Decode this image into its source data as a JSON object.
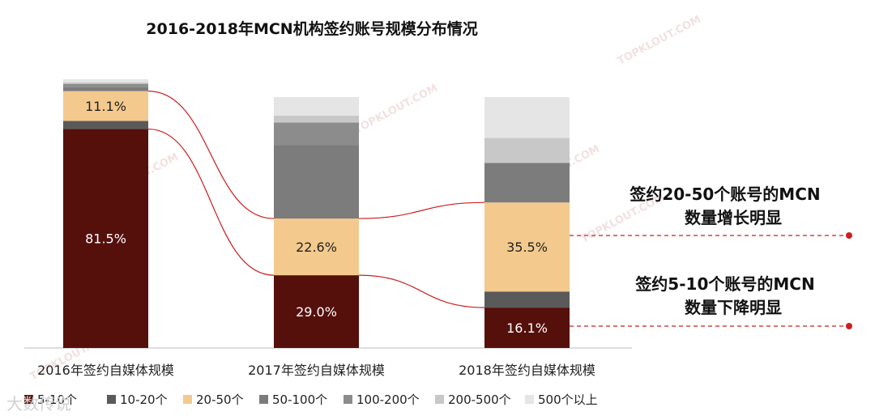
{
  "chart_data": {
    "type": "stacked-bar",
    "title": "2016-2018年MCN机构签约账号规模分布情况",
    "categories": [
      "2016年签约自媒体规模",
      "2017年签约自媒体规模",
      "2018年签约自媒体规模"
    ],
    "ylim": [
      0,
      100
    ],
    "series": [
      {
        "name": "5-10个",
        "color": "#55100c",
        "values": [
          81.5,
          29.0,
          16.1
        ],
        "labels": [
          "81.5%",
          "29.0%",
          "16.1%"
        ]
      },
      {
        "name": "10-20个",
        "color": "#5a5a5a",
        "values": [
          3.0,
          0,
          6.4
        ],
        "labels": [
          "",
          "",
          ""
        ]
      },
      {
        "name": "20-50个",
        "color": "#f3c98d",
        "values": [
          11.1,
          22.6,
          35.5
        ],
        "labels": [
          "11.1%",
          "22.6%",
          "35.5%"
        ]
      },
      {
        "name": "50-100个",
        "color": "#7c7c7c",
        "values": [
          1.5,
          29.2,
          15.8
        ],
        "labels": [
          "",
          "",
          ""
        ]
      },
      {
        "name": "100-200个",
        "color": "#8c8c8c",
        "values": [
          1.2,
          9.1,
          0
        ],
        "labels": [
          "",
          "",
          ""
        ]
      },
      {
        "name": "200-500个",
        "color": "#c8c8c8",
        "values": [
          0.5,
          2.7,
          9.9
        ],
        "labels": [
          "",
          "",
          ""
        ]
      },
      {
        "name": "500个以上",
        "color": "#e5e5e5",
        "values": [
          1.2,
          7.4,
          16.3
        ],
        "labels": [
          "",
          "",
          ""
        ]
      }
    ],
    "annotations": [
      {
        "lines": [
          "签约20-50个账号的MCN",
          "数量增长明显"
        ],
        "series": "20-50个"
      },
      {
        "lines": [
          "签约5-10个账号的MCN",
          "数量下降明显"
        ],
        "series": "5-10个"
      }
    ],
    "legend_position": "bottom",
    "accent": "#cc1f1f"
  },
  "watermarks": [
    "TOPKLOUT.COM",
    "TOPKLOUT.COM",
    "TOPKLOUT.COM",
    "TOPKLOUT.COM",
    "TOPKLOUT.COM",
    "TOPKLOUT.COM"
  ],
  "corner_logo": "大数传说"
}
